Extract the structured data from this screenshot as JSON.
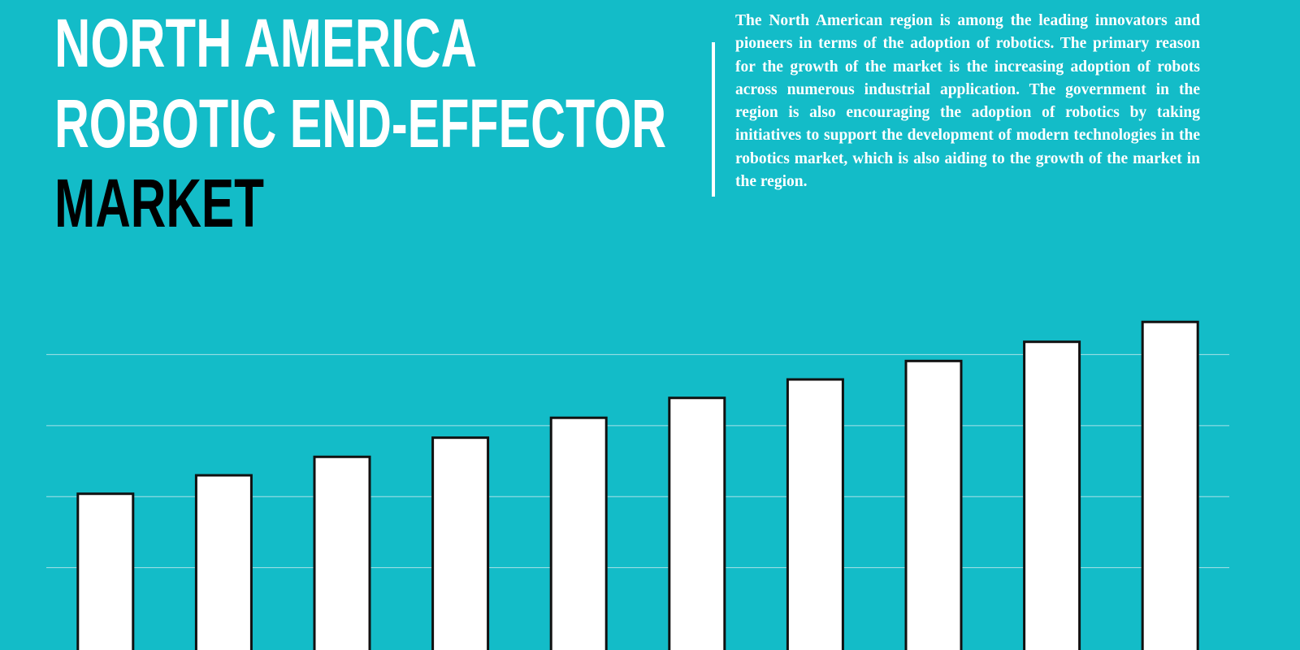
{
  "chart_data": {
    "type": "bar",
    "title_lines": [
      "NORTH AMERICA",
      "ROBOTIC END-EFFECTOR",
      "MARKET"
    ],
    "description": "The North American region is among the leading innovators and pioneers in terms of the adoption of robotics. The primary reason for the growth of the market is the increasing adoption of robots across numerous industrial application. The government in the region is also encouraging the adoption of robotics by taking initiatives to support the development of modern technologies in the robotics market, which is also aiding to the growth of the market in the region.",
    "categories": [
      null,
      null,
      null,
      null,
      null,
      null,
      null,
      null,
      null,
      null
    ],
    "values": [
      2.04,
      2.3,
      2.56,
      2.83,
      3.11,
      3.39,
      3.65,
      3.91,
      4.18,
      4.46
    ],
    "color": "#ffffff",
    "ylim": [
      0,
      4.6
    ],
    "yticks": [
      1,
      2,
      3,
      4
    ],
    "grid": true
  }
}
